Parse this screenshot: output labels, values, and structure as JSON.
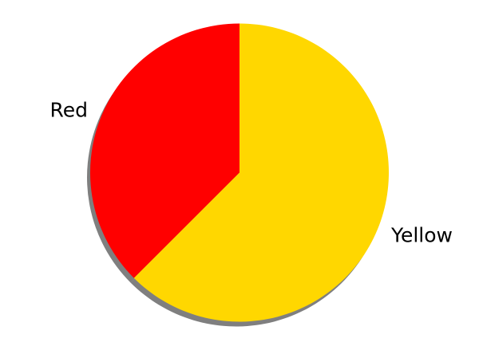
{
  "chart_data": {
    "type": "pie",
    "title": "",
    "shadow": true,
    "start_angle_deg": 90,
    "direction": "counterclockwise",
    "slices": [
      {
        "label": "Red",
        "value": 37.5,
        "color": "#ff0000"
      },
      {
        "label": "Yellow",
        "value": 62.5,
        "color": "#ffd700"
      }
    ],
    "legend": false
  }
}
